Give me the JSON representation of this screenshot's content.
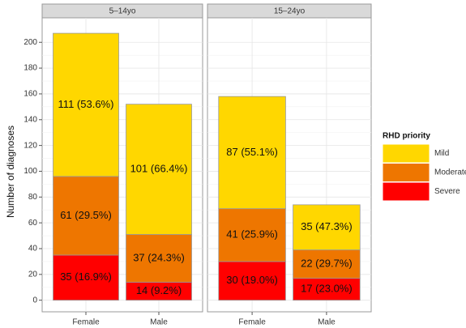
{
  "chart_data": {
    "type": "bar",
    "stacked": true,
    "ylabel": "Number of diagnoses",
    "legend_title": "RHD priority",
    "ylim": [
      -9,
      219
    ],
    "yticks": [
      0,
      20,
      40,
      60,
      80,
      100,
      120,
      140,
      160,
      180,
      200
    ],
    "grid": true,
    "facets": [
      {
        "title": "5–14yo",
        "categories": [
          "Female",
          "Male"
        ]
      },
      {
        "title": "15–24yo",
        "categories": [
          "Female",
          "Male"
        ]
      }
    ],
    "series": [
      {
        "name": "Severe",
        "color": "#ff0000",
        "values": [
          35,
          14,
          30,
          17
        ],
        "value_labels": [
          "35 (16.9%)",
          "14 (9.2%)",
          "30 (19.0%)",
          "17 (23.0%)"
        ]
      },
      {
        "name": "Moderate",
        "color": "#ee7600",
        "values": [
          61,
          37,
          41,
          22
        ],
        "value_labels": [
          "61 (29.5%)",
          "37 (24.3%)",
          "41 (25.9%)",
          "22 (29.7%)"
        ]
      },
      {
        "name": "Mild",
        "color": "#ffd700",
        "values": [
          111,
          101,
          87,
          35
        ],
        "value_labels": [
          "111 (53.6%)",
          "101 (66.4%)",
          "87 (55.1%)",
          "35 (47.3%)"
        ]
      }
    ]
  }
}
